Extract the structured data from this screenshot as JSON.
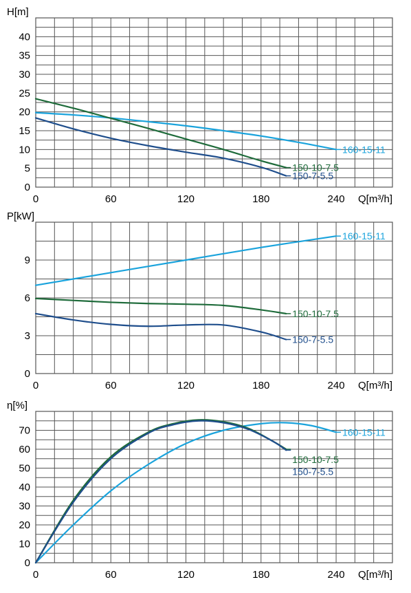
{
  "colors": {
    "series_160": "#1aa3dc",
    "series_150_10": "#1e6b3a",
    "series_150_7": "#1f4e8c",
    "grid": "#555555",
    "text": "#000000"
  },
  "chart_data": [
    {
      "type": "line",
      "ylabel": "H[m]",
      "xlabel": "Q[m³/h]",
      "xlim": [
        0,
        285
      ],
      "ylim": [
        0,
        45
      ],
      "x_ticks": [
        "0",
        "60",
        "120",
        "180",
        "240"
      ],
      "y_ticks": [
        "0",
        "5",
        "10",
        "15",
        "20",
        "25",
        "30",
        "35",
        "40"
      ],
      "grid": true,
      "series": [
        {
          "name": "160-15-11",
          "color": "#1aa3dc",
          "x": [
            0,
            30,
            60,
            90,
            120,
            150,
            180,
            210,
            240
          ],
          "y": [
            19.8,
            19.2,
            18.4,
            17.4,
            16.3,
            15.0,
            13.6,
            11.9,
            10.0
          ]
        },
        {
          "name": "150-10-7.5",
          "color": "#1e6b3a",
          "x": [
            0,
            30,
            60,
            90,
            120,
            150,
            180,
            200
          ],
          "y": [
            23.5,
            21.0,
            18.3,
            15.6,
            12.8,
            10.0,
            7.0,
            5.2
          ]
        },
        {
          "name": "150-7-5.5",
          "color": "#1f4e8c",
          "x": [
            0,
            30,
            60,
            90,
            120,
            150,
            180,
            200
          ],
          "y": [
            18.4,
            15.5,
            13.0,
            11.0,
            9.3,
            7.7,
            5.3,
            3.0
          ]
        }
      ]
    },
    {
      "type": "line",
      "ylabel": "P[kW]",
      "xlabel": "Q[m³/h]",
      "xlim": [
        0,
        285
      ],
      "ylim": [
        0,
        12
      ],
      "x_ticks": [
        "0",
        "60",
        "120",
        "180",
        "240"
      ],
      "y_ticks": [
        "0",
        "3",
        "6",
        "9"
      ],
      "grid": true,
      "series": [
        {
          "name": "160-15-11",
          "color": "#1aa3dc",
          "x": [
            0,
            60,
            120,
            180,
            240
          ],
          "y": [
            7.0,
            8.0,
            9.0,
            10.0,
            10.9
          ]
        },
        {
          "name": "150-10-7.5",
          "color": "#1e6b3a",
          "x": [
            0,
            30,
            60,
            90,
            120,
            150,
            180,
            200
          ],
          "y": [
            5.95,
            5.8,
            5.65,
            5.55,
            5.5,
            5.4,
            5.05,
            4.75
          ]
        },
        {
          "name": "150-7-5.5",
          "color": "#1f4e8c",
          "x": [
            0,
            30,
            60,
            90,
            120,
            150,
            180,
            200
          ],
          "y": [
            4.75,
            4.25,
            3.9,
            3.75,
            3.85,
            3.85,
            3.3,
            2.7
          ]
        }
      ]
    },
    {
      "type": "line",
      "ylabel": "η[%]",
      "xlabel": "Q[m³/h]",
      "xlim": [
        0,
        285
      ],
      "ylim": [
        0,
        80
      ],
      "x_ticks": [
        "0",
        "60",
        "120",
        "180",
        "240"
      ],
      "y_ticks": [
        "0",
        "10",
        "20",
        "30",
        "40",
        "50",
        "60",
        "70"
      ],
      "grid": true,
      "series": [
        {
          "name": "160-15-11",
          "color": "#1aa3dc",
          "x": [
            0,
            30,
            60,
            90,
            120,
            150,
            180,
            200,
            220,
            240
          ],
          "y": [
            0,
            20,
            38,
            52,
            63,
            70,
            73.5,
            74,
            72.5,
            69
          ]
        },
        {
          "name": "150-10-7.5",
          "color": "#1e6b3a",
          "x": [
            0,
            30,
            60,
            90,
            110,
            130,
            150,
            170,
            190,
            200
          ],
          "y": [
            0,
            33,
            56,
            69,
            73.5,
            75.5,
            74.5,
            71,
            64,
            60
          ]
        },
        {
          "name": "150-7-5.5",
          "color": "#1f4e8c",
          "x": [
            0,
            30,
            60,
            90,
            110,
            130,
            150,
            170,
            190,
            200
          ],
          "y": [
            0,
            32,
            55,
            68.5,
            73,
            75,
            74,
            70.5,
            64,
            59.5
          ]
        }
      ]
    }
  ]
}
